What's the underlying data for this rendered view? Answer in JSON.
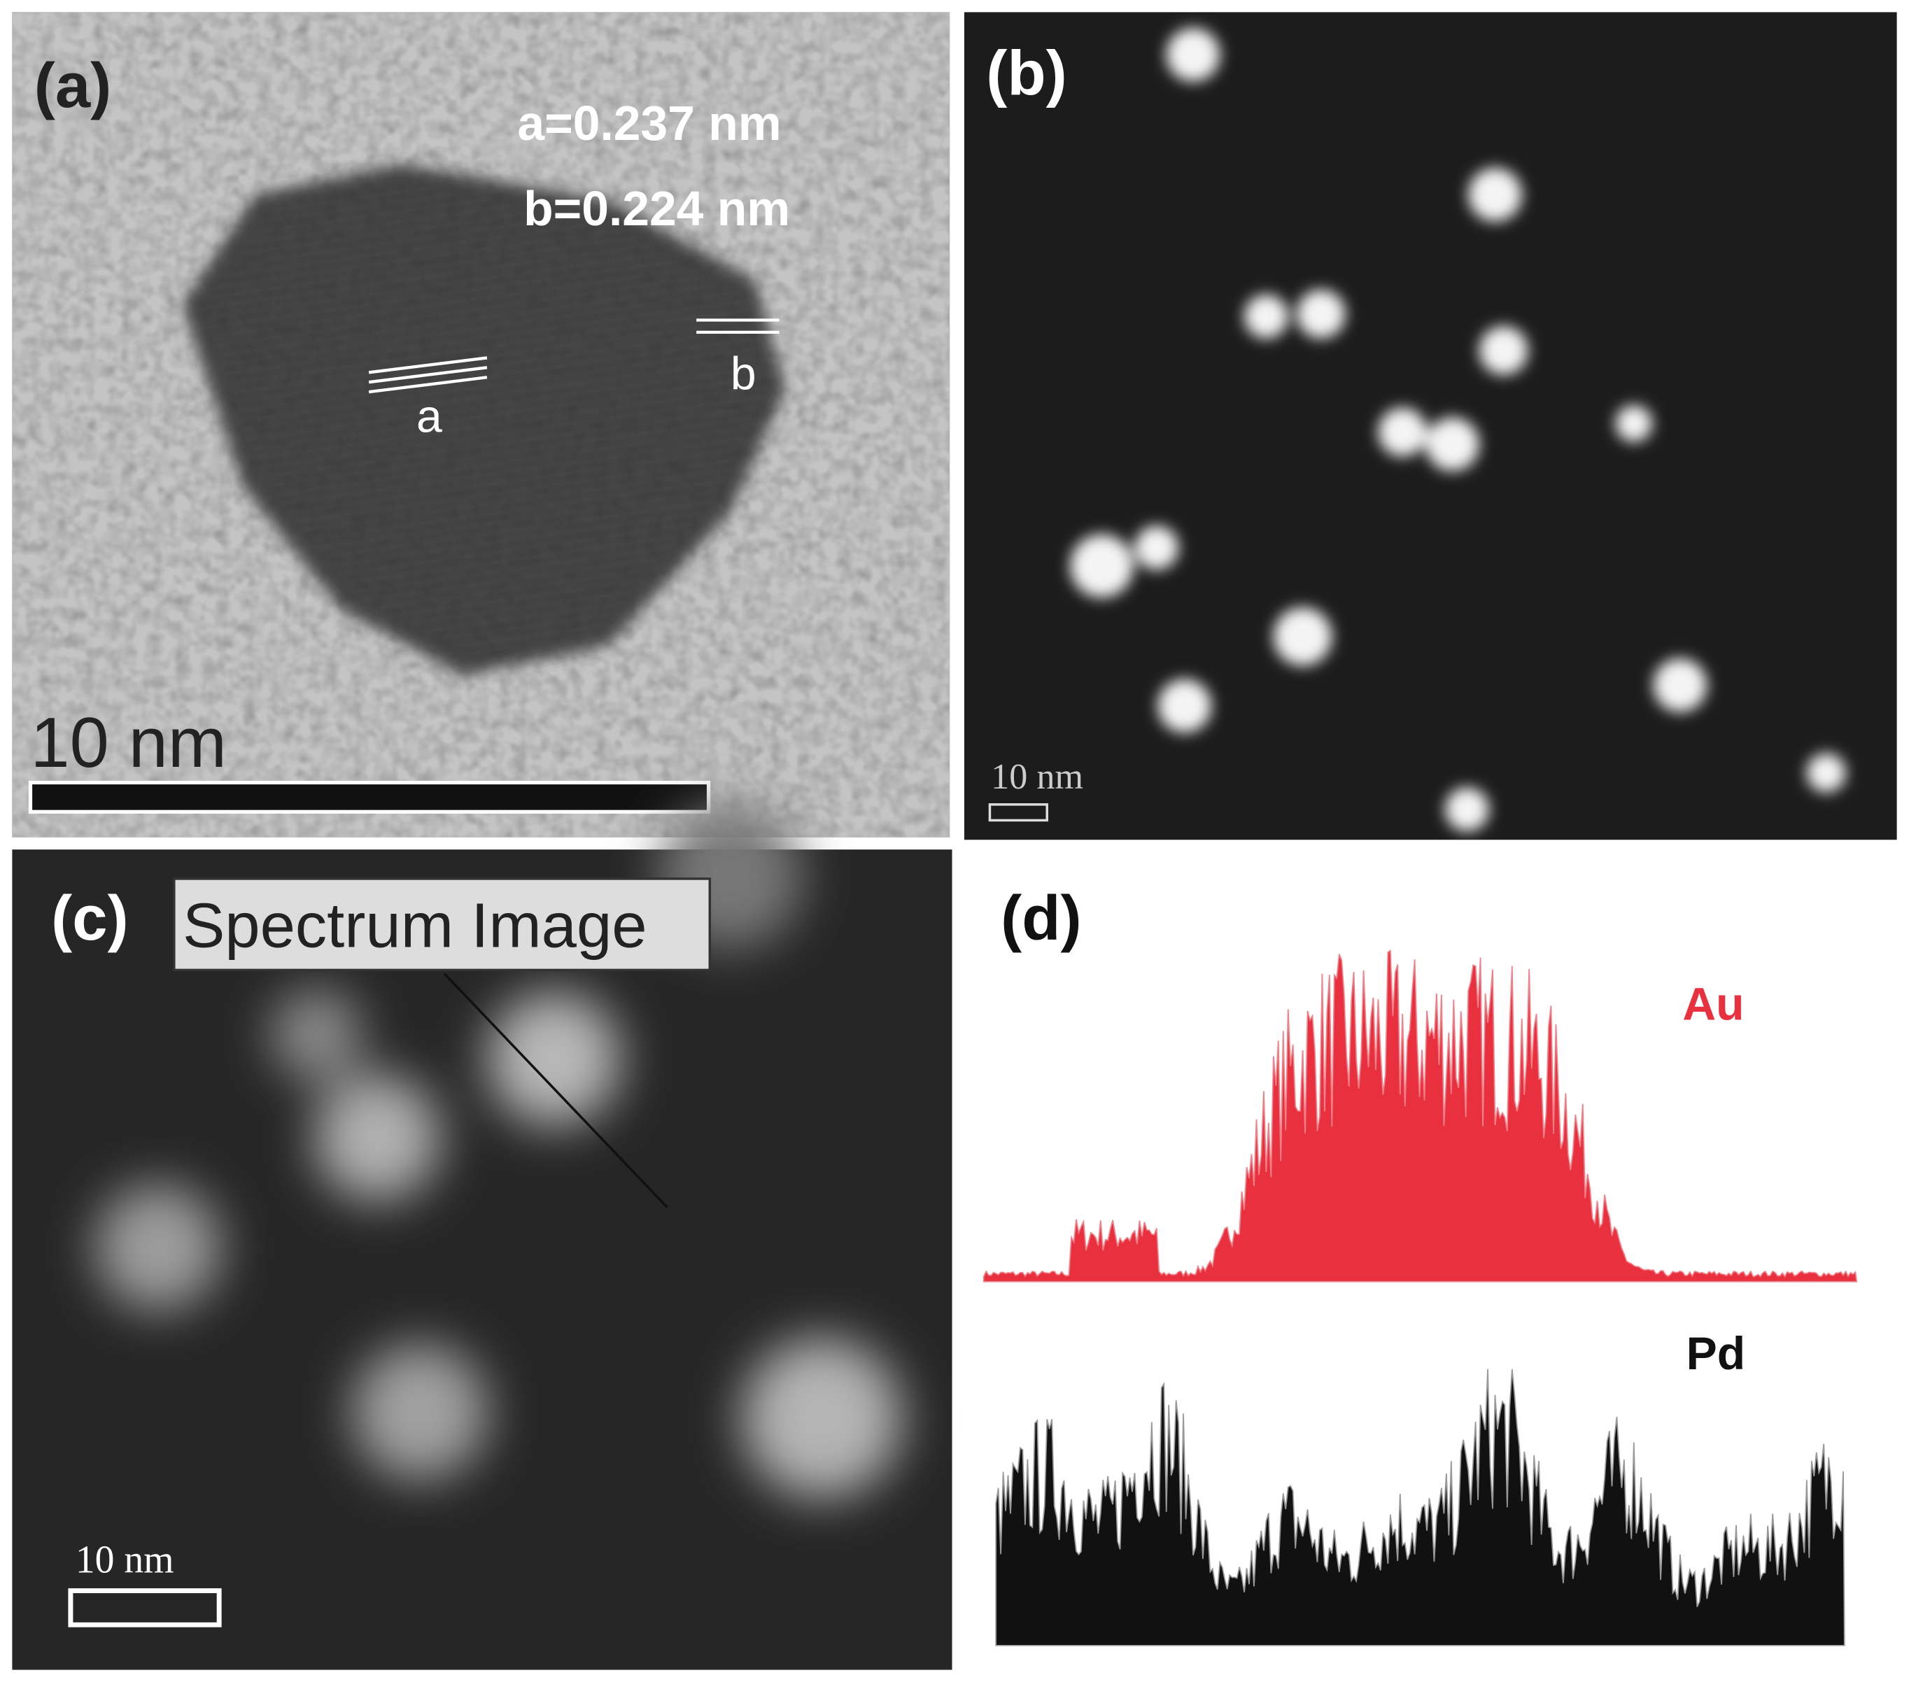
{
  "panels": [
    {
      "label": "(a)",
      "annotations": [
        "a=0.237 nm",
        "b=0.224 nm"
      ],
      "lattice_labels": [
        "a",
        "b"
      ],
      "scale_bar": "10 nm"
    },
    {
      "label": "(b)",
      "scale_bar": "10 nm"
    },
    {
      "label": "(c)",
      "box_label": "Spectrum Image",
      "scale_bar": "10 nm"
    },
    {
      "label": "(d)",
      "traces": [
        "Au",
        "Pd"
      ]
    }
  ]
}
